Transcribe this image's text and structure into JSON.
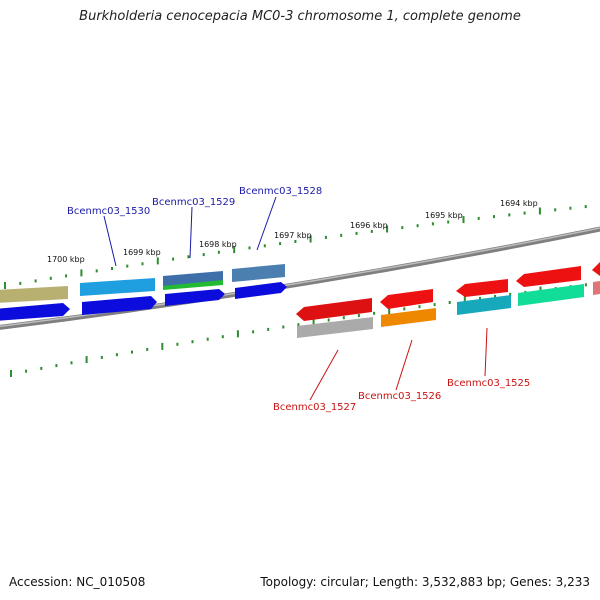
{
  "title": "Burkholderia cenocepacia MC0-3 chromosome 1, complete genome",
  "footer": {
    "accession": "Accession: NC_010508",
    "summary": "Topology: circular; Length: 3,532,883 bp; Genes: 3,233"
  },
  "colors": {
    "backbone": "#8a8a8a",
    "ticks": "#2e8b2e",
    "label_top": "#1a1aa6",
    "label_bottom": "#cc1111"
  },
  "scale_labels": [
    "1700 kbp",
    "1699 kbp",
    "1698 kbp",
    "1697 kbp",
    "1696 kbp",
    "1695 kbp",
    "1694 kbp"
  ],
  "gene_labels_top": [
    "Bcenmc03_1530",
    "Bcenmc03_1529",
    "Bcenmc03_1528"
  ],
  "gene_labels_bottom": [
    "Bcenmc03_1527",
    "Bcenmc03_1526",
    "Bcenmc03_1525"
  ],
  "genes_top": [
    {
      "color": "#b8b070"
    },
    {
      "color": "#1f9fe0"
    },
    {
      "color": "#3f6fa8"
    },
    {
      "color": "#4a7fb0"
    },
    {
      "color": "#0c0cdd"
    },
    {
      "color": "#0c0cdd"
    },
    {
      "color": "#0c0cdd"
    },
    {
      "color": "#22bb33"
    },
    {
      "color": "#0c0cdd"
    }
  ],
  "genes_bottom": [
    {
      "color": "#dd1111"
    },
    {
      "color": "#ee1111"
    },
    {
      "color": "#ee1111"
    },
    {
      "color": "#ee1111"
    },
    {
      "color": "#ee1111"
    },
    {
      "color": "#aaaaaa"
    },
    {
      "color": "#ee8800"
    },
    {
      "color": "#17a9bb"
    },
    {
      "color": "#11dd99"
    },
    {
      "color": "#dd7777"
    }
  ]
}
